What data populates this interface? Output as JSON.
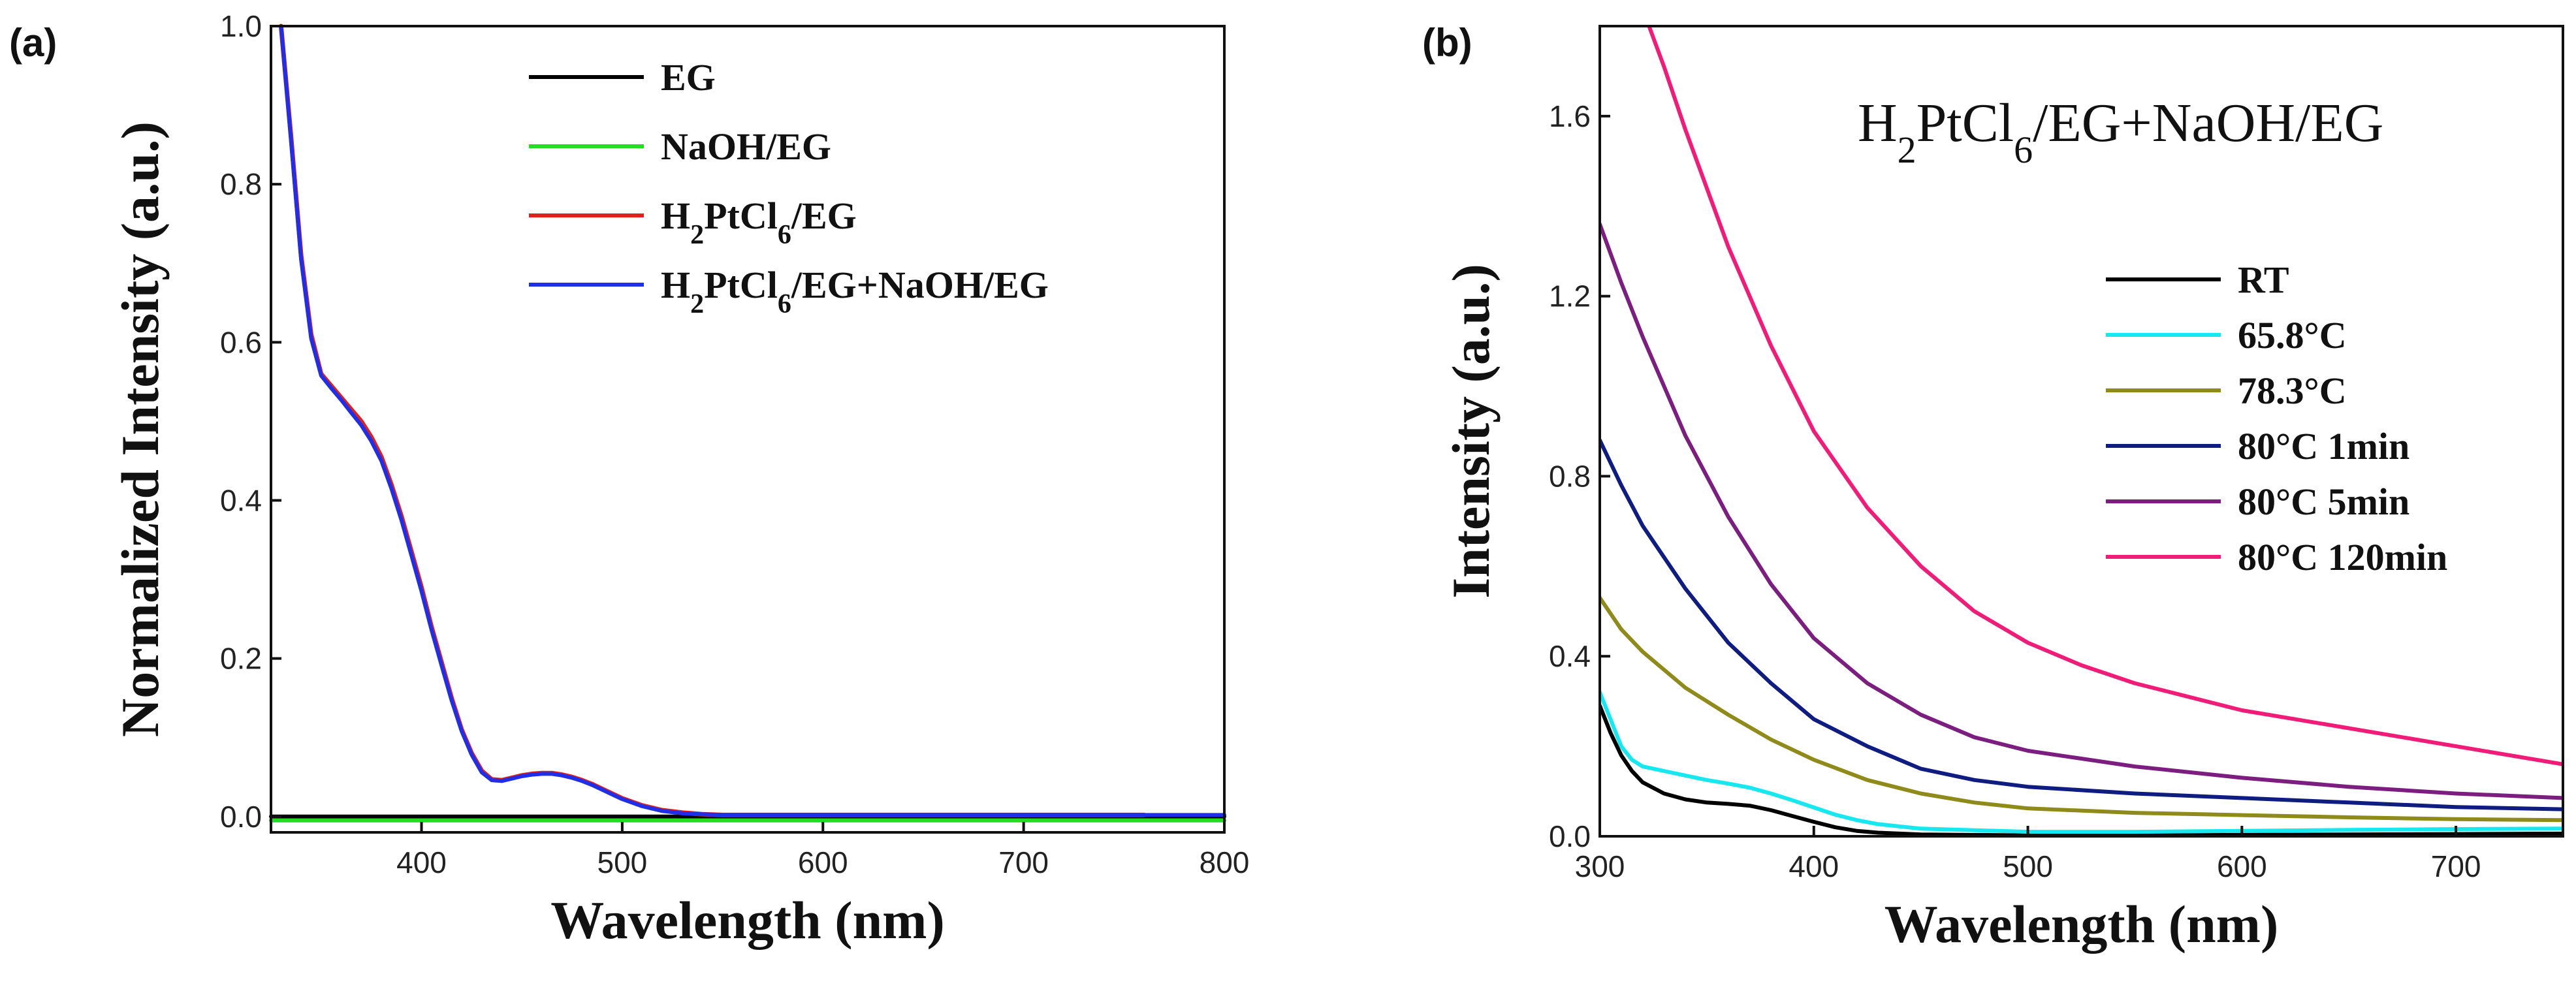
{
  "chart_data": [
    {
      "panel": "(a)",
      "type": "line",
      "title": "",
      "xlabel": "Wavelength (nm)",
      "ylabel": "Normalized Intensity (a.u.)",
      "xlim": [
        325,
        800
      ],
      "ylim": [
        -0.02,
        1.0
      ],
      "xticks": [
        400,
        500,
        600,
        700,
        800
      ],
      "yticks": [
        0.0,
        0.2,
        0.4,
        0.6,
        0.8,
        1.0
      ],
      "legend_position": "top-right",
      "series": [
        {
          "name": "EG",
          "color": "#000000",
          "x": [
            325,
            800
          ],
          "y": [
            0.0,
            0.0
          ]
        },
        {
          "name": "NaOH/EG",
          "color": "#22dd22",
          "x": [
            325,
            800
          ],
          "y": [
            -0.005,
            -0.005
          ]
        },
        {
          "name": "H2PtCl6/EG",
          "color": "#e0201c",
          "x": [
            330,
            335,
            340,
            345,
            350,
            355,
            360,
            365,
            370,
            375,
            380,
            385,
            390,
            395,
            400,
            405,
            410,
            415,
            420,
            425,
            430,
            435,
            440,
            445,
            450,
            455,
            460,
            465,
            470,
            475,
            480,
            485,
            490,
            495,
            500,
            510,
            520,
            530,
            540,
            550,
            560,
            580,
            600,
            650,
            700,
            760
          ],
          "y": [
            1.0,
            0.86,
            0.71,
            0.61,
            0.56,
            0.545,
            0.53,
            0.515,
            0.5,
            0.48,
            0.455,
            0.42,
            0.38,
            0.335,
            0.29,
            0.24,
            0.195,
            0.15,
            0.11,
            0.08,
            0.058,
            0.047,
            0.046,
            0.049,
            0.052,
            0.054,
            0.055,
            0.055,
            0.053,
            0.05,
            0.046,
            0.041,
            0.035,
            0.029,
            0.023,
            0.014,
            0.008,
            0.005,
            0.003,
            0.002,
            0.002,
            0.002,
            0.002,
            0.002,
            0.002,
            0.002
          ]
        },
        {
          "name": "H2PtCl6/EG+NaOH/EG",
          "color": "#1f2ee8",
          "x": [
            330,
            335,
            340,
            345,
            350,
            355,
            360,
            365,
            370,
            375,
            380,
            385,
            390,
            395,
            400,
            405,
            410,
            415,
            420,
            425,
            430,
            435,
            440,
            445,
            450,
            455,
            460,
            465,
            470,
            475,
            480,
            485,
            490,
            495,
            500,
            510,
            520,
            530,
            540,
            550,
            560,
            580,
            600,
            650,
            700,
            800
          ],
          "y": [
            1.0,
            0.855,
            0.705,
            0.605,
            0.558,
            0.542,
            0.527,
            0.511,
            0.495,
            0.475,
            0.45,
            0.415,
            0.375,
            0.33,
            0.285,
            0.236,
            0.191,
            0.147,
            0.108,
            0.078,
            0.056,
            0.046,
            0.045,
            0.048,
            0.051,
            0.053,
            0.054,
            0.054,
            0.052,
            0.049,
            0.045,
            0.04,
            0.034,
            0.028,
            0.022,
            0.013,
            0.007,
            0.004,
            0.003,
            0.002,
            0.002,
            0.002,
            0.002,
            0.002,
            0.002,
            0.002
          ]
        }
      ]
    },
    {
      "panel": "(b)",
      "type": "line",
      "title": "",
      "annotation": "H2PtCl6/EG+NaOH/EG",
      "xlabel": "Wavelength (nm)",
      "ylabel": "Intensity (a.u.)",
      "xlim": [
        300,
        750
      ],
      "ylim": [
        0.0,
        1.8
      ],
      "xticks": [
        300,
        400,
        500,
        600,
        700
      ],
      "yticks": [
        0.0,
        0.4,
        0.8,
        1.2,
        1.6
      ],
      "legend_position": "right",
      "series": [
        {
          "name": "RT",
          "color": "#000000",
          "x": [
            300,
            305,
            310,
            315,
            320,
            330,
            340,
            350,
            360,
            370,
            380,
            390,
            400,
            410,
            420,
            430,
            450,
            500,
            550,
            600,
            650,
            700,
            750
          ],
          "y": [
            0.29,
            0.23,
            0.18,
            0.145,
            0.12,
            0.095,
            0.082,
            0.075,
            0.072,
            0.068,
            0.058,
            0.045,
            0.032,
            0.02,
            0.012,
            0.008,
            0.004,
            0.002,
            0.002,
            0.003,
            0.004,
            0.005,
            0.006
          ]
        },
        {
          "name": "65.8°C",
          "color": "#15e8ee",
          "x": [
            300,
            305,
            310,
            315,
            320,
            330,
            340,
            350,
            360,
            370,
            380,
            390,
            400,
            410,
            420,
            430,
            450,
            500,
            550,
            600,
            650,
            700,
            750
          ],
          "y": [
            0.32,
            0.26,
            0.2,
            0.17,
            0.155,
            0.145,
            0.135,
            0.125,
            0.117,
            0.108,
            0.095,
            0.08,
            0.064,
            0.048,
            0.036,
            0.027,
            0.017,
            0.01,
            0.01,
            0.012,
            0.014,
            0.016,
            0.017
          ]
        },
        {
          "name": "78.3°C",
          "color": "#8e8b1b",
          "x": [
            300,
            310,
            320,
            340,
            360,
            380,
            400,
            425,
            450,
            475,
            500,
            550,
            600,
            650,
            700,
            750
          ],
          "y": [
            0.53,
            0.46,
            0.41,
            0.33,
            0.27,
            0.215,
            0.17,
            0.125,
            0.095,
            0.075,
            0.062,
            0.052,
            0.047,
            0.042,
            0.038,
            0.036
          ]
        },
        {
          "name": "80°C 1min",
          "color": "#0f1c80",
          "x": [
            300,
            310,
            320,
            340,
            360,
            380,
            400,
            425,
            450,
            475,
            500,
            550,
            600,
            650,
            700,
            750
          ],
          "y": [
            0.88,
            0.78,
            0.69,
            0.55,
            0.43,
            0.34,
            0.26,
            0.2,
            0.15,
            0.125,
            0.11,
            0.095,
            0.085,
            0.075,
            0.065,
            0.06
          ]
        },
        {
          "name": "80°C 5min",
          "color": "#7b1e80",
          "x": [
            300,
            310,
            320,
            340,
            360,
            380,
            400,
            425,
            450,
            475,
            500,
            550,
            600,
            650,
            700,
            750
          ],
          "y": [
            1.36,
            1.23,
            1.11,
            0.89,
            0.71,
            0.56,
            0.44,
            0.34,
            0.27,
            0.22,
            0.19,
            0.155,
            0.13,
            0.11,
            0.095,
            0.085
          ]
        },
        {
          "name": "80°C 120min",
          "color": "#f01c78",
          "x": [
            323,
            330,
            340,
            350,
            360,
            380,
            400,
            425,
            450,
            475,
            500,
            525,
            550,
            575,
            600,
            650,
            700,
            750
          ],
          "y": [
            1.8,
            1.71,
            1.57,
            1.44,
            1.31,
            1.09,
            0.9,
            0.73,
            0.6,
            0.5,
            0.43,
            0.38,
            0.34,
            0.31,
            0.28,
            0.24,
            0.2,
            0.16
          ]
        }
      ]
    }
  ]
}
